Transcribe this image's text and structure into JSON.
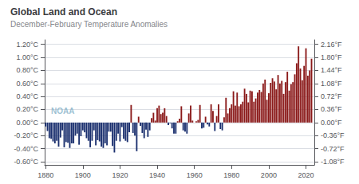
{
  "chart_data": {
    "type": "bar",
    "title": "Global Land and Ocean",
    "subtitle": "December-February Temperature Anomalies",
    "annotations": [
      "NOAA"
    ],
    "x": [
      1880,
      1881,
      1882,
      1883,
      1884,
      1885,
      1886,
      1887,
      1888,
      1889,
      1890,
      1891,
      1892,
      1893,
      1894,
      1895,
      1896,
      1897,
      1898,
      1899,
      1900,
      1901,
      1902,
      1903,
      1904,
      1905,
      1906,
      1907,
      1908,
      1909,
      1910,
      1911,
      1912,
      1913,
      1914,
      1915,
      1916,
      1917,
      1918,
      1919,
      1920,
      1921,
      1922,
      1923,
      1924,
      1925,
      1926,
      1927,
      1928,
      1929,
      1930,
      1931,
      1932,
      1933,
      1934,
      1935,
      1936,
      1937,
      1938,
      1939,
      1940,
      1941,
      1942,
      1943,
      1944,
      1945,
      1946,
      1947,
      1948,
      1949,
      1950,
      1951,
      1952,
      1953,
      1954,
      1955,
      1956,
      1957,
      1958,
      1959,
      1960,
      1961,
      1962,
      1963,
      1964,
      1965,
      1966,
      1967,
      1968,
      1969,
      1970,
      1971,
      1972,
      1973,
      1974,
      1975,
      1976,
      1977,
      1978,
      1979,
      1980,
      1981,
      1982,
      1983,
      1984,
      1985,
      1986,
      1987,
      1988,
      1989,
      1990,
      1991,
      1992,
      1993,
      1994,
      1995,
      1996,
      1997,
      1998,
      1999,
      2000,
      2001,
      2002,
      2003,
      2004,
      2005,
      2006,
      2007,
      2008,
      2009,
      2010,
      2011,
      2012,
      2013,
      2014,
      2015,
      2016,
      2017,
      2018,
      2019,
      2020,
      2021,
      2022,
      2023
    ],
    "values": [
      -0.06,
      -0.13,
      -0.24,
      -0.25,
      -0.29,
      -0.32,
      -0.28,
      -0.37,
      -0.23,
      -0.12,
      -0.38,
      -0.3,
      -0.31,
      -0.39,
      -0.32,
      -0.32,
      -0.2,
      -0.17,
      -0.34,
      -0.21,
      -0.12,
      -0.15,
      -0.24,
      -0.28,
      -0.38,
      -0.28,
      -0.12,
      -0.35,
      -0.27,
      -0.29,
      -0.37,
      -0.39,
      -0.32,
      -0.35,
      -0.14,
      -0.14,
      -0.36,
      -0.46,
      -0.28,
      -0.17,
      -0.29,
      -0.07,
      -0.25,
      -0.28,
      -0.3,
      -0.15,
      0.27,
      -0.16,
      -0.2,
      -0.44,
      0.09,
      -0.05,
      -0.16,
      -0.24,
      -0.11,
      -0.22,
      -0.12,
      0.07,
      0.15,
      0.03,
      0.22,
      0.26,
      0.13,
      0.15,
      0.22,
      0.1,
      -0.04,
      -0.01,
      -0.09,
      -0.17,
      -0.17,
      0.02,
      0.06,
      0.25,
      -0.12,
      -0.14,
      -0.17,
      0.14,
      0.26,
      0.03,
      0.0,
      0.02,
      0.04,
      0.27,
      -0.09,
      -0.08,
      0.09,
      -0.03,
      -0.06,
      0.28,
      0.18,
      -0.13,
      0.1,
      0.28,
      -0.1,
      -0.12,
      0.08,
      0.38,
      0.14,
      0.22,
      0.28,
      0.48,
      0.26,
      0.46,
      0.25,
      0.28,
      0.32,
      0.52,
      0.44,
      0.31,
      0.49,
      0.48,
      0.32,
      0.37,
      0.46,
      0.5,
      0.47,
      0.6,
      0.66,
      0.35,
      0.45,
      0.61,
      0.68,
      0.63,
      0.51,
      0.73,
      0.6,
      0.64,
      0.44,
      0.62,
      0.78,
      0.49,
      0.59,
      0.62,
      0.74,
      0.91,
      1.17,
      0.83,
      0.65,
      0.87,
      1.14,
      0.72,
      0.8,
      0.98
    ],
    "colors": [
      "#1a2f6e",
      "#1a2f6e",
      "#1a2f6e",
      "#1a2f6e",
      "#1a2f6e",
      "#1a2f6e",
      "#1a2f6e",
      "#1a2f6e",
      "#1a2f6e",
      "#1a2f6e",
      "#1a2f6e",
      "#1a2f6e",
      "#1a2f6e",
      "#1a2f6e",
      "#1a2f6e",
      "#1a2f6e",
      "#1a2f6e",
      "#1a2f6e",
      "#1a2f6e",
      "#1a2f6e",
      "#1a2f6e",
      "#1a2f6e",
      "#1a2f6e",
      "#1a2f6e",
      "#1a2f6e",
      "#1a2f6e",
      "#1a2f6e",
      "#1a2f6e",
      "#1a2f6e",
      "#1a2f6e",
      "#1a2f6e",
      "#1a2f6e",
      "#1a2f6e",
      "#1a2f6e",
      "#1a2f6e",
      "#1a2f6e",
      "#1a2f6e",
      "#1a2f6e",
      "#1a2f6e",
      "#1a2f6e",
      "#1a2f6e",
      "#1a2f6e",
      "#1a2f6e",
      "#1a2f6e",
      "#1a2f6e",
      "#1a2f6e",
      "#8b1a1a",
      "#1a2f6e",
      "#1a2f6e",
      "#1a2f6e",
      "#8b1a1a",
      "#1a2f6e",
      "#1a2f6e",
      "#1a2f6e",
      "#1a2f6e",
      "#1a2f6e",
      "#1a2f6e",
      "#8b1a1a",
      "#8b1a1a",
      "#8b1a1a",
      "#8b1a1a",
      "#8b1a1a",
      "#8b1a1a",
      "#8b1a1a",
      "#8b1a1a",
      "#8b1a1a",
      "#1a2f6e",
      "#1a2f6e",
      "#1a2f6e",
      "#1a2f6e",
      "#1a2f6e",
      "#8b1a1a",
      "#8b1a1a",
      "#8b1a1a",
      "#1a2f6e",
      "#1a2f6e",
      "#1a2f6e",
      "#8b1a1a",
      "#8b1a1a",
      "#8b1a1a",
      "#8b1a1a",
      "#8b1a1a",
      "#8b1a1a",
      "#8b1a1a",
      "#1a2f6e",
      "#1a2f6e",
      "#8b1a1a",
      "#1a2f6e",
      "#1a2f6e",
      "#8b1a1a",
      "#8b1a1a",
      "#1a2f6e",
      "#8b1a1a",
      "#8b1a1a",
      "#1a2f6e",
      "#1a2f6e",
      "#8b1a1a",
      "#8b1a1a",
      "#8b1a1a",
      "#8b1a1a",
      "#8b1a1a",
      "#8b1a1a",
      "#8b1a1a",
      "#8b1a1a",
      "#8b1a1a",
      "#8b1a1a",
      "#8b1a1a",
      "#8b1a1a",
      "#8b1a1a",
      "#8b1a1a",
      "#8b1a1a",
      "#8b1a1a",
      "#8b1a1a",
      "#8b1a1a",
      "#8b1a1a",
      "#8b1a1a",
      "#8b1a1a",
      "#8b1a1a",
      "#8b1a1a",
      "#8b1a1a",
      "#8b1a1a",
      "#8b1a1a",
      "#8b1a1a",
      "#8b1a1a",
      "#8b1a1a",
      "#8b1a1a",
      "#8b1a1a",
      "#8b1a1a",
      "#8b1a1a",
      "#8b1a1a",
      "#8b1a1a",
      "#8b1a1a",
      "#8b1a1a",
      "#8b1a1a",
      "#8b1a1a",
      "#8b1a1a",
      "#8b1a1a",
      "#8b1a1a",
      "#8b1a1a",
      "#8b1a1a",
      "#8b1a1a",
      "#8b1a1a",
      "#8b1a1a",
      "#8b1a1a"
    ],
    "xlim": [
      1879.5,
      2024.5
    ],
    "xticks": [
      1880,
      1900,
      1920,
      1940,
      1960,
      1980,
      2000,
      2020
    ],
    "ylim": [
      -0.65,
      1.27
    ],
    "yticks": [
      {
        "value": -0.6,
        "label": "-0.60°C"
      },
      {
        "value": -0.4,
        "label": "-0.40°C"
      },
      {
        "value": -0.2,
        "label": "-0.20°C"
      },
      {
        "value": 0,
        "label": "0.00°C"
      },
      {
        "value": 0.2,
        "label": "0.20°C"
      },
      {
        "value": 0.4,
        "label": "0.40°C"
      },
      {
        "value": 0.6,
        "label": "0.60°C"
      },
      {
        "value": 0.8,
        "label": "0.80°C"
      },
      {
        "value": 1.0,
        "label": "1.00°C"
      },
      {
        "value": 1.2,
        "label": "1.20°C"
      }
    ],
    "y2lim": [
      -1.17,
      2.286
    ],
    "y2ticks": [
      {
        "value": -1.08,
        "label": "-1.08°F"
      },
      {
        "value": -0.72,
        "label": "-0.72°F"
      },
      {
        "value": -0.36,
        "label": "-0.36°F"
      },
      {
        "value": 0,
        "label": "0.00°F"
      },
      {
        "value": 0.36,
        "label": "0.36°F"
      },
      {
        "value": 0.72,
        "label": "0.72°F"
      },
      {
        "value": 1.08,
        "label": "1.08°F"
      },
      {
        "value": 1.44,
        "label": "1.44°F"
      },
      {
        "value": 1.8,
        "label": "1.80°F"
      },
      {
        "value": 2.16,
        "label": "2.16°F"
      }
    ],
    "grid": true
  }
}
